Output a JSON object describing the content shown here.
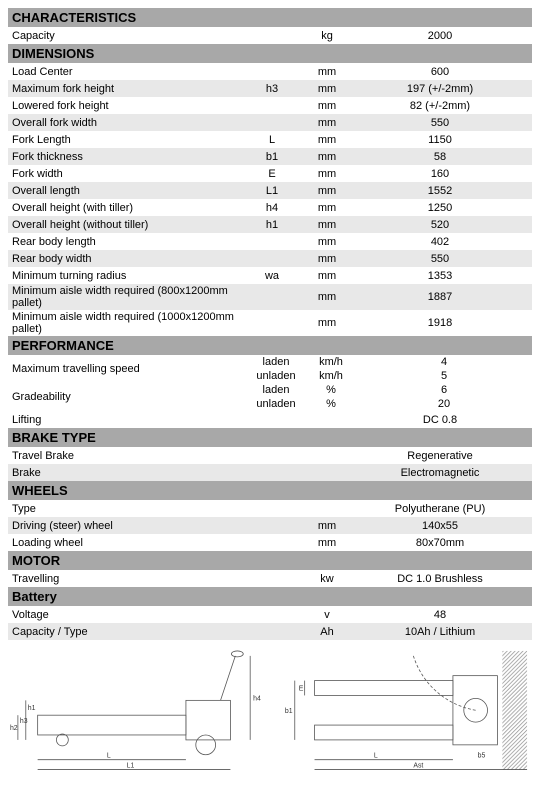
{
  "colors": {
    "header_bg": "#a8a8a8",
    "row_odd": "#e8e8e8",
    "row_even": "#ffffff",
    "text": "#000000"
  },
  "sections": {
    "characteristics": {
      "title": "CHARACTERISTICS",
      "rows": [
        {
          "label": "Capacity",
          "sym": "",
          "unit": "kg",
          "val": "2000"
        }
      ]
    },
    "dimensions": {
      "title": "DIMENSIONS",
      "rows": [
        {
          "label": "Load Center",
          "sym": "",
          "unit": "mm",
          "val": "600"
        },
        {
          "label": "Maximum fork height",
          "sym": "h3",
          "unit": "mm",
          "val": "197 (+/-2mm)"
        },
        {
          "label": "Lowered fork height",
          "sym": "",
          "unit": "mm",
          "val": "82 (+/-2mm)"
        },
        {
          "label": "Overall fork width",
          "sym": "",
          "unit": "mm",
          "val": "550"
        },
        {
          "label": "Fork Length",
          "sym": "L",
          "unit": "mm",
          "val": "1150"
        },
        {
          "label": "Fork thickness",
          "sym": "b1",
          "unit": "mm",
          "val": "58"
        },
        {
          "label": "Fork width",
          "sym": "E",
          "unit": "mm",
          "val": "160"
        },
        {
          "label": "Overall length",
          "sym": "L1",
          "unit": "mm",
          "val": "1552"
        },
        {
          "label": "Overall height (with tiller)",
          "sym": "h4",
          "unit": "mm",
          "val": "1250"
        },
        {
          "label": "Overall height (without tiller)",
          "sym": "h1",
          "unit": "mm",
          "val": "520"
        },
        {
          "label": "Rear body length",
          "sym": "",
          "unit": "mm",
          "val": "402"
        },
        {
          "label": "Rear body width",
          "sym": "",
          "unit": "mm",
          "val": "550"
        },
        {
          "label": "Minimum turning radius",
          "sym": "wa",
          "unit": "mm",
          "val": "1353"
        },
        {
          "label": "Minimum aisle width required (800x1200mm pallet)",
          "sym": "",
          "unit": "mm",
          "val": "1887"
        },
        {
          "label": "Minimum aisle width required (1000x1200mm pallet)",
          "sym": "",
          "unit": "mm",
          "val": "1918"
        }
      ]
    },
    "performance": {
      "title": "PERFORMANCE",
      "speed": {
        "label": "Maximum travelling speed",
        "laden": {
          "sym": "laden",
          "unit": "km/h",
          "val": "4"
        },
        "unladen": {
          "sym": "unladen",
          "unit": "km/h",
          "val": "5"
        }
      },
      "grade": {
        "label": "Gradeability",
        "laden": {
          "sym": "laden",
          "unit": "%",
          "val": "6"
        },
        "unladen": {
          "sym": "unladen",
          "unit": "%",
          "val": "20"
        }
      },
      "lifting": {
        "label": "Lifting",
        "sym": "",
        "unit": "",
        "val": "DC 0.8"
      }
    },
    "brake": {
      "title": "BRAKE TYPE",
      "rows": [
        {
          "label": "Travel Brake",
          "sym": "",
          "unit": "",
          "val": "Regenerative"
        },
        {
          "label": "Brake",
          "sym": "",
          "unit": "",
          "val": "Electromagnetic"
        }
      ]
    },
    "wheels": {
      "title": "WHEELS",
      "rows": [
        {
          "label": "Type",
          "sym": "",
          "unit": "",
          "val": "Polyutherane (PU)"
        },
        {
          "label": "Driving (steer) wheel",
          "sym": "",
          "unit": "mm",
          "val": "140x55"
        },
        {
          "label": "Loading wheel",
          "sym": "",
          "unit": "mm",
          "val": "80x70mm"
        }
      ]
    },
    "motor": {
      "title": "MOTOR",
      "rows": [
        {
          "label": "Travelling",
          "sym": "",
          "unit": "kw",
          "val": "DC 1.0 Brushless"
        }
      ]
    },
    "battery": {
      "title": "Battery",
      "rows": [
        {
          "label": "Voltage",
          "sym": "",
          "unit": "v",
          "val": "48"
        },
        {
          "label": "Capacity / Type",
          "sym": "",
          "unit": "Ah",
          "val": "10Ah / Lithium"
        }
      ]
    }
  },
  "diagram_labels": {
    "side": {
      "L": "L",
      "L1": "L1",
      "h1": "h1",
      "h2": "h2",
      "h3": "h3",
      "h4": "h4"
    },
    "top": {
      "E": "E",
      "b1": "b1",
      "L": "L",
      "b5": "b5",
      "Ast": "Ast"
    }
  }
}
